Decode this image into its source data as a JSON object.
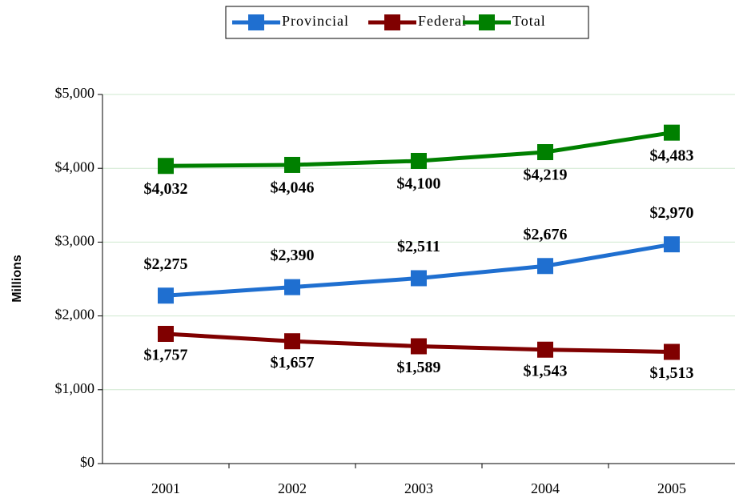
{
  "chart_data": {
    "type": "line",
    "y_label": "Millions",
    "categories": [
      "2001",
      "2002",
      "2003",
      "2004",
      "2005"
    ],
    "series": [
      {
        "name": "Provincial",
        "color": "#1f6fd0",
        "values": [
          2275,
          2390,
          2511,
          2676,
          2970
        ],
        "value_labels": [
          "$2,275",
          "$2,390",
          "$2,511",
          "$2,676",
          "$2,970"
        ]
      },
      {
        "name": "Federal",
        "color": "#800000",
        "values": [
          1757,
          1657,
          1589,
          1543,
          1513
        ],
        "value_labels": [
          "$1,757",
          "$1,657",
          "$1,589",
          "$1,543",
          "$1,513"
        ]
      },
      {
        "name": "Total",
        "color": "#008000",
        "values": [
          4032,
          4046,
          4100,
          4219,
          4483
        ],
        "value_labels": [
          "$4,032",
          "$4,046",
          "$4,100",
          "$4,219",
          "$4,483"
        ]
      }
    ],
    "ylim": [
      0,
      5000
    ],
    "yticks": [
      {
        "value": 0,
        "label": "$0"
      },
      {
        "value": 1000,
        "label": "$1,000"
      },
      {
        "value": 2000,
        "label": "$2,000"
      },
      {
        "value": 3000,
        "label": "$3,000"
      },
      {
        "value": 4000,
        "label": "$4,000"
      },
      {
        "value": 5000,
        "label": "$5,000"
      }
    ],
    "grid": true,
    "legend": "top"
  }
}
